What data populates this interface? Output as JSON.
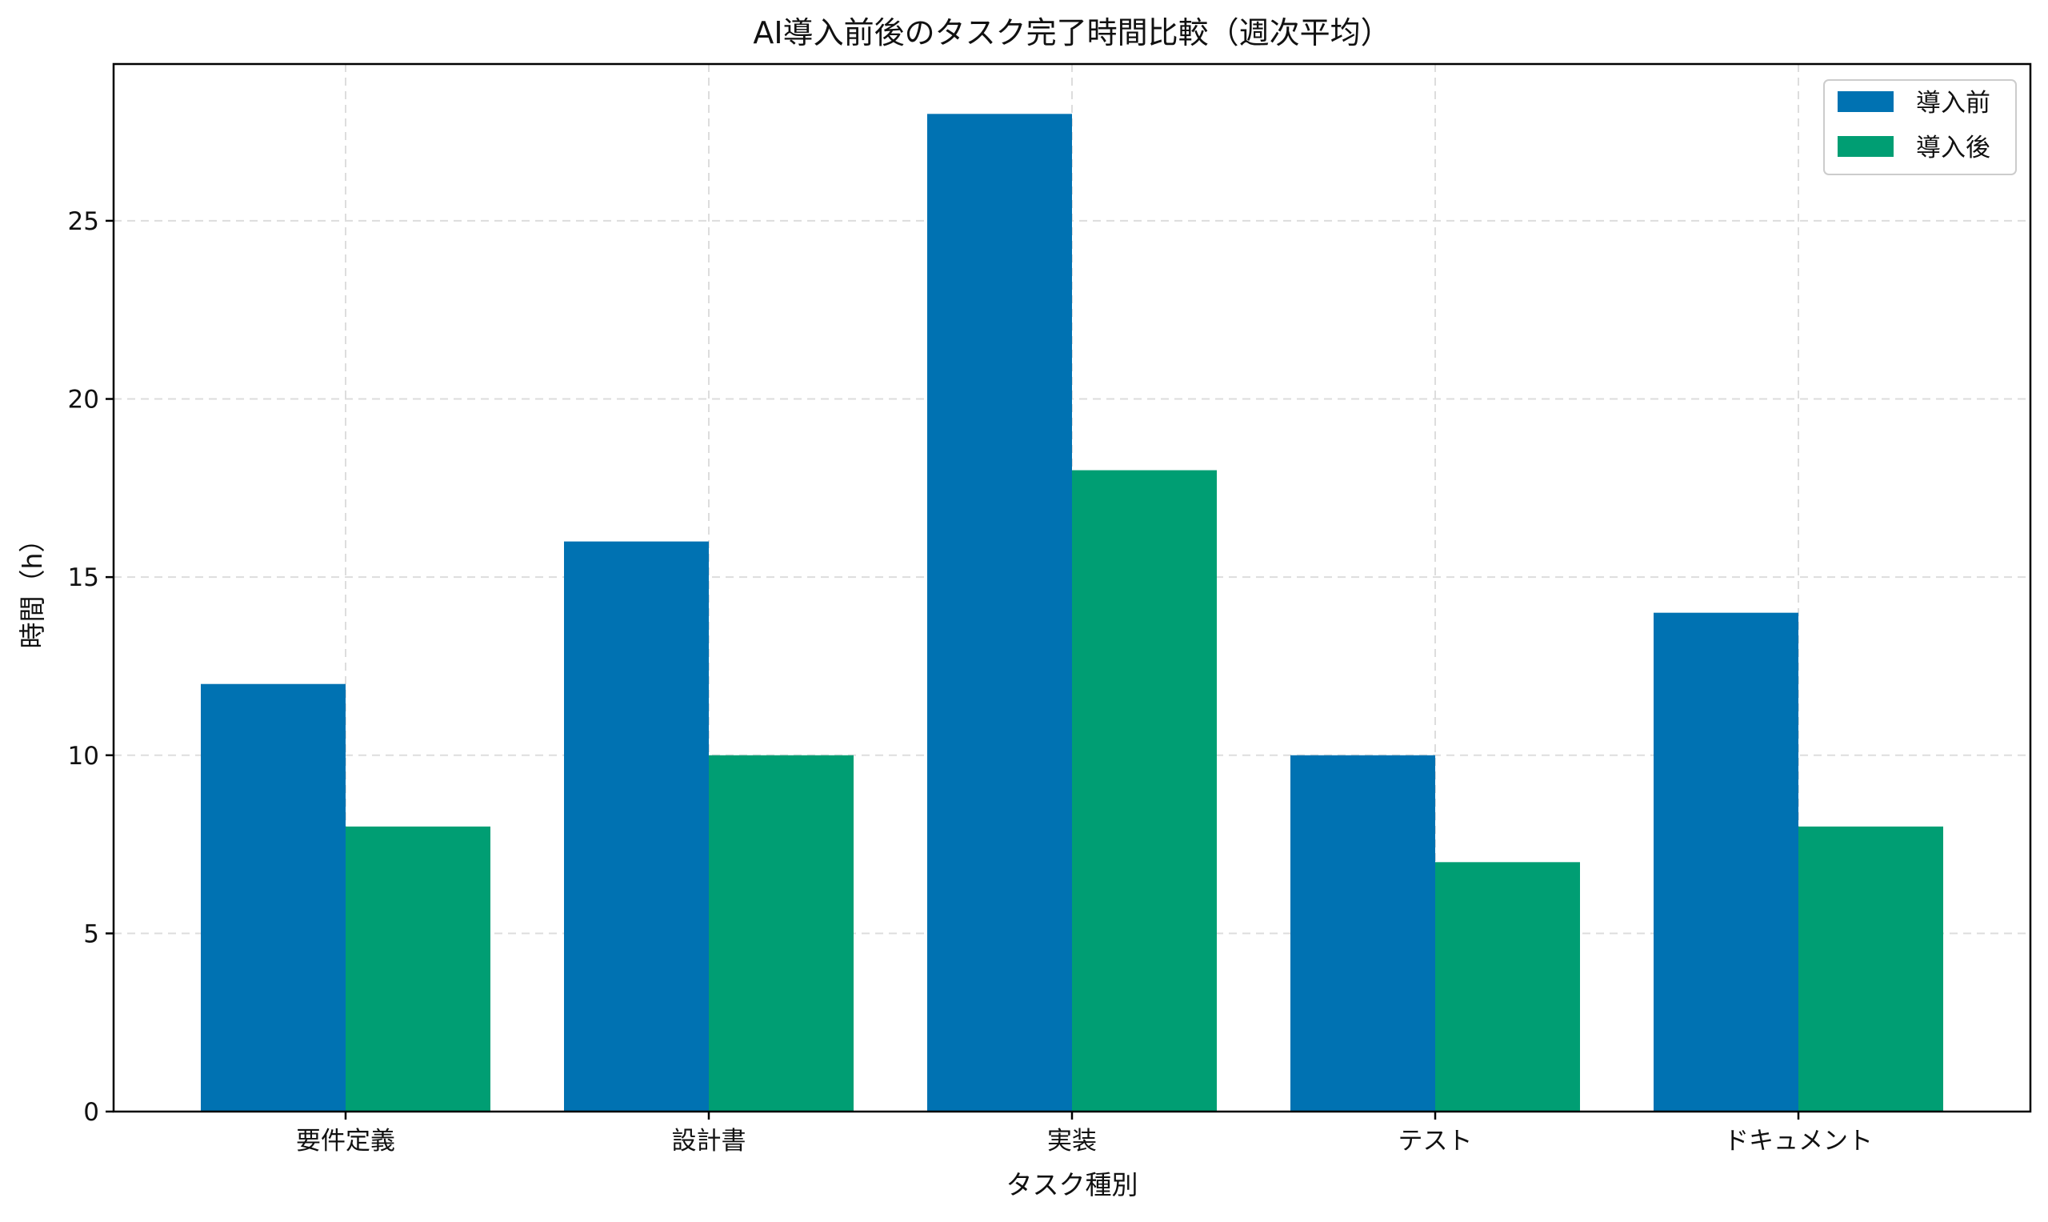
{
  "chart_data": {
    "type": "bar",
    "title": "AI導入前後のタスク完了時間比較（週次平均）",
    "xlabel": "タスク種別",
    "ylabel": "時間（h）",
    "categories": [
      "要件定義",
      "設計書",
      "実装",
      "テスト",
      "ドキュメント"
    ],
    "series": [
      {
        "name": "導入前",
        "color": "#0072b2",
        "values": [
          12,
          16,
          28,
          10,
          14
        ]
      },
      {
        "name": "導入後",
        "color": "#009e73",
        "values": [
          8,
          10,
          18,
          7,
          8
        ]
      }
    ],
    "ylim": [
      0,
      29.4
    ],
    "yticks": [
      0,
      5,
      10,
      15,
      20,
      25
    ],
    "grid": true,
    "legend_position": "top-right"
  }
}
